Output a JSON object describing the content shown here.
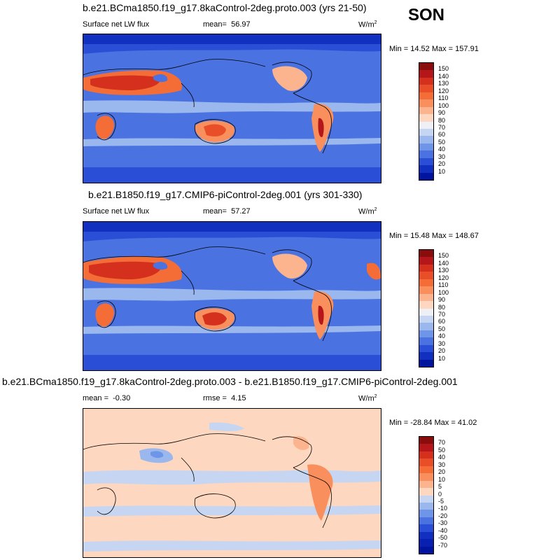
{
  "season": "SON",
  "panels": [
    {
      "title": "b.e21.BCma1850.f19_g17.8kaControl-2deg.proto.003 (yrs 21-50)",
      "left_label": "Surface net LW flux",
      "mean_label": "mean=",
      "mean_value": "56.97",
      "units": "W/m",
      "units_sup": "2",
      "minmax": "Min = 14.52 Max = 157.91",
      "colorbar": {
        "ticks": [
          "150",
          "140",
          "130",
          "120",
          "110",
          "100",
          "90",
          "80",
          "70",
          "60",
          "50",
          "40",
          "30",
          "20",
          "10"
        ],
        "colors": [
          "#8a0d0d",
          "#b5161a",
          "#d52f1e",
          "#e84e27",
          "#f46c36",
          "#f88f5c",
          "#fbb48e",
          "#fdd7bf",
          "#eef0f6",
          "#c6d6f2",
          "#9ab7ee",
          "#6f95e8",
          "#4a72e0",
          "#2a4fd6",
          "#1230c0",
          "#00149e"
        ]
      },
      "chart_data": {
        "type": "heatmap",
        "title": "b.e21.BCma1850.f19_g17.8kaControl-2deg.proto.003 (yrs 21-50)",
        "variable": "Surface net LW flux",
        "season": "SON",
        "mean": 56.97,
        "min": 14.52,
        "max": 157.91,
        "units": "W/m^2",
        "contour_levels": [
          10,
          20,
          30,
          40,
          50,
          60,
          70,
          80,
          90,
          100,
          110,
          120,
          130,
          140,
          150
        ]
      }
    },
    {
      "title": "b.e21.B1850.f19_g17.CMIP6-piControl-2deg.001 (yrs 301-330)",
      "left_label": "Surface net LW flux",
      "mean_label": "mean=",
      "mean_value": "57.27",
      "units": "W/m",
      "units_sup": "2",
      "minmax": "Min = 15.48 Max = 148.67",
      "colorbar": {
        "ticks": [
          "150",
          "140",
          "130",
          "120",
          "110",
          "100",
          "90",
          "80",
          "70",
          "60",
          "50",
          "40",
          "30",
          "20",
          "10"
        ],
        "colors": [
          "#8a0d0d",
          "#b5161a",
          "#d52f1e",
          "#e84e27",
          "#f46c36",
          "#f88f5c",
          "#fbb48e",
          "#fdd7bf",
          "#eef0f6",
          "#c6d6f2",
          "#9ab7ee",
          "#6f95e8",
          "#4a72e0",
          "#2a4fd6",
          "#1230c0",
          "#00149e"
        ]
      },
      "chart_data": {
        "type": "heatmap",
        "title": "b.e21.B1850.f19_g17.CMIP6-piControl-2deg.001 (yrs 301-330)",
        "variable": "Surface net LW flux",
        "season": "SON",
        "mean": 57.27,
        "min": 15.48,
        "max": 148.67,
        "units": "W/m^2",
        "contour_levels": [
          10,
          20,
          30,
          40,
          50,
          60,
          70,
          80,
          90,
          100,
          110,
          120,
          130,
          140,
          150
        ]
      }
    },
    {
      "title": "b.e21.BCma1850.f19_g17.8kaControl-2deg.proto.003 - b.e21.B1850.f19_g17.CMIP6-piControl-2deg.001",
      "left_label": "mean =",
      "mean_label": "",
      "mean_value": "-0.30",
      "rmse_label": "rmse =",
      "rmse_value": "4.15",
      "units": "W/m",
      "units_sup": "2",
      "minmax": "Min = -28.84 Max = 41.02",
      "colorbar": {
        "ticks": [
          "70",
          "50",
          "40",
          "30",
          "20",
          "10",
          "5",
          "0",
          "-5",
          "-10",
          "-20",
          "-30",
          "-40",
          "-50",
          "-70"
        ],
        "colors": [
          "#8a0d0d",
          "#b5161a",
          "#d52f1e",
          "#e84e27",
          "#f46c36",
          "#f88f5c",
          "#fbb48e",
          "#fdd7bf",
          "#c6d6f2",
          "#9ab7ee",
          "#6f95e8",
          "#4a72e0",
          "#2a4fd6",
          "#1230c0",
          "#0a20b0",
          "#00149e"
        ]
      },
      "chart_data": {
        "type": "heatmap",
        "title": "b.e21.BCma1850.f19_g17.8kaControl-2deg.proto.003 - b.e21.B1850.f19_g17.CMIP6-piControl-2deg.001",
        "season": "SON",
        "mean": -0.3,
        "rmse": 4.15,
        "min": -28.84,
        "max": 41.02,
        "units": "W/m^2",
        "contour_levels": [
          -70,
          -50,
          -40,
          -30,
          -20,
          -10,
          -5,
          0,
          5,
          10,
          20,
          30,
          40,
          50,
          70
        ]
      }
    }
  ]
}
